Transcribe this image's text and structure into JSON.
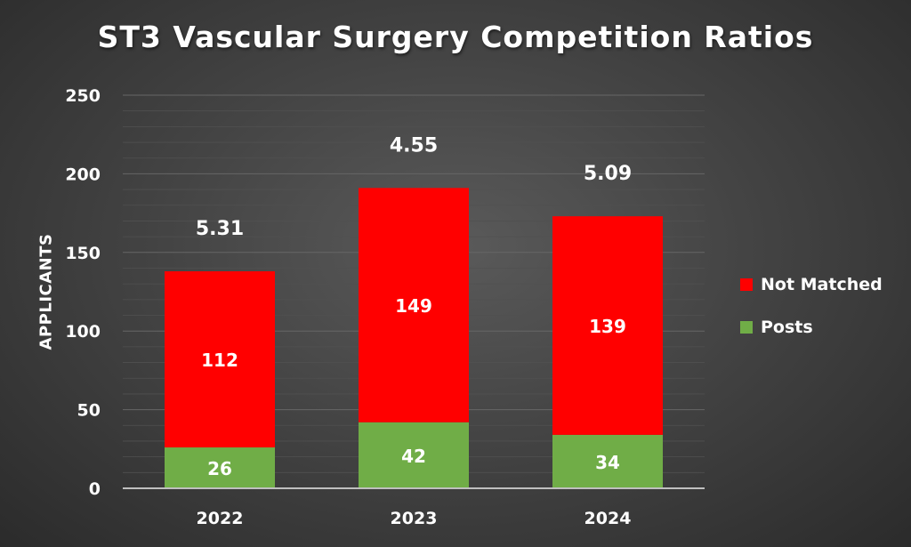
{
  "chart_data": {
    "type": "bar",
    "stacked": true,
    "title": "ST3 Vascular Surgery Competition Ratios",
    "xlabel": "",
    "ylabel": "APPLICANTS",
    "categories": [
      "2022",
      "2023",
      "2024"
    ],
    "series": [
      {
        "name": "Posts",
        "values": [
          26,
          42,
          34
        ],
        "color": "#70AD47"
      },
      {
        "name": "Not Matched",
        "values": [
          112,
          149,
          139
        ],
        "color": "#FF0000"
      }
    ],
    "ratio_labels": [
      "5.31",
      "4.55",
      "5.09"
    ],
    "ylim": [
      0,
      250
    ],
    "yticks": [
      0,
      50,
      100,
      150,
      200,
      250
    ],
    "grid": true,
    "legend": "right",
    "colors": {
      "text": "#FFFFFF",
      "gridline": "#5E5E5E",
      "axis": "#BFBFBF"
    }
  },
  "legend": {
    "items": [
      {
        "label": "Not Matched",
        "color": "#FF0000"
      },
      {
        "label": "Posts",
        "color": "#70AD47"
      }
    ]
  }
}
